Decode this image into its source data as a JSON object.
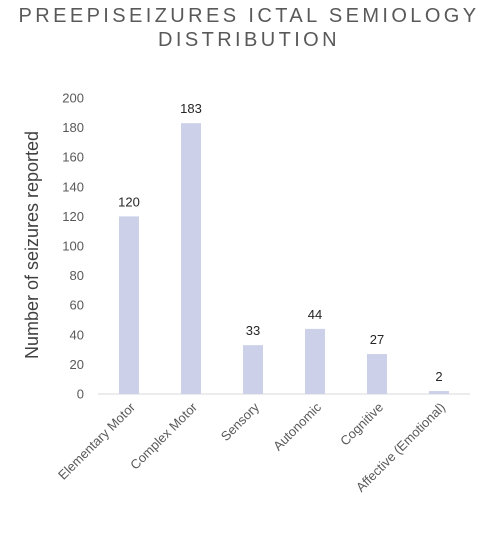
{
  "chart_data": {
    "type": "bar",
    "title_lines": [
      "PREEPISEIZURES ICTAL SEMIOLOGY",
      "DISTRIBUTION"
    ],
    "xlabel": "",
    "ylabel": "Number of seizures reported",
    "categories": [
      "Elementary Motor",
      "Complex Motor",
      "Sensory",
      "Autonomic",
      "Cognitive",
      "Affective (Emotional)"
    ],
    "values": [
      120,
      183,
      33,
      44,
      27,
      2
    ],
    "data_labels": [
      "120",
      "183",
      "33",
      "44",
      "27",
      "2"
    ],
    "ylim": [
      0,
      200
    ],
    "yticks": [
      0,
      20,
      40,
      60,
      80,
      100,
      120,
      140,
      160,
      180,
      200
    ],
    "grid": false,
    "legend": "none",
    "bar_color": "#ccd0e9"
  }
}
